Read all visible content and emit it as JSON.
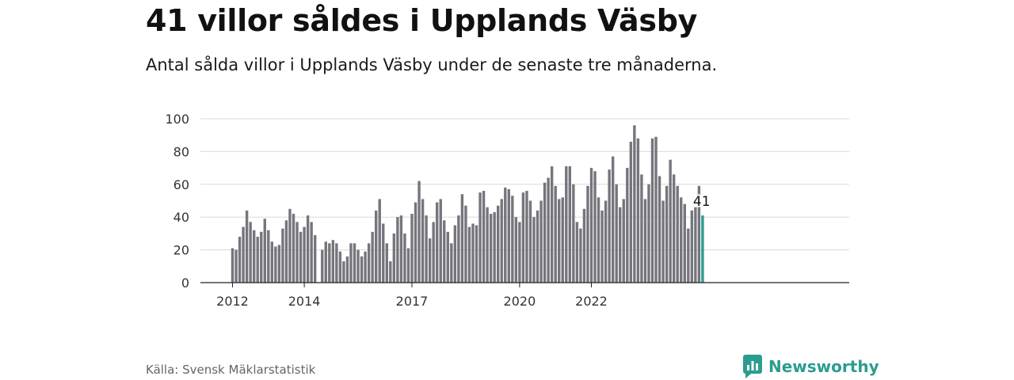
{
  "header": {
    "title": "41 villor såldes i Upplands Väsby",
    "subtitle": "Antal sålda villor i Upplands Väsby under de senaste tre månaderna."
  },
  "footer": {
    "source": "Källa: Svensk Mäklarstatistik",
    "brand": "Newsworthy"
  },
  "colors": {
    "bar": "#76757d",
    "highlight": "#2a9d8f",
    "grid": "#d9d9d9",
    "brand": "#2a9d8f"
  },
  "chart_data": {
    "type": "bar",
    "title": "41 villor såldes i Upplands Väsby",
    "subtitle": "Antal sålda villor i Upplands Väsby under de senaste tre månaderna.",
    "xlabel": "",
    "ylabel": "",
    "ylim": [
      0,
      100
    ],
    "yticks": [
      0,
      20,
      40,
      60,
      80,
      100
    ],
    "xticks": [
      {
        "label": "2012",
        "index": 0
      },
      {
        "label": "2014",
        "index": 20
      },
      {
        "label": "2017",
        "index": 50
      },
      {
        "label": "2020",
        "index": 80
      },
      {
        "label": "2022",
        "index": 100
      }
    ],
    "grid": true,
    "highlight_label": "41",
    "values": [
      21,
      20,
      28,
      34,
      44,
      37,
      32,
      28,
      31,
      39,
      32,
      25,
      22,
      23,
      33,
      38,
      45,
      42,
      37,
      31,
      34,
      41,
      37,
      29,
      null,
      20,
      25,
      24,
      26,
      24,
      19,
      13,
      16,
      24,
      24,
      20,
      16,
      19,
      24,
      31,
      44,
      51,
      36,
      24,
      13,
      30,
      40,
      41,
      30,
      21,
      42,
      49,
      62,
      51,
      41,
      27,
      37,
      49,
      51,
      38,
      31,
      24,
      35,
      41,
      54,
      47,
      34,
      36,
      35,
      55,
      56,
      46,
      42,
      43,
      47,
      51,
      58,
      57,
      53,
      40,
      37,
      55,
      56,
      50,
      40,
      44,
      50,
      61,
      64,
      71,
      59,
      51,
      52,
      71,
      71,
      60,
      37,
      33,
      45,
      59,
      70,
      68,
      52,
      44,
      50,
      69,
      77,
      60,
      46,
      51,
      70,
      86,
      96,
      88,
      66,
      51,
      60,
      88,
      89,
      65,
      50,
      59,
      75,
      66,
      59,
      52,
      48,
      33,
      44,
      46,
      59,
      41
    ]
  }
}
